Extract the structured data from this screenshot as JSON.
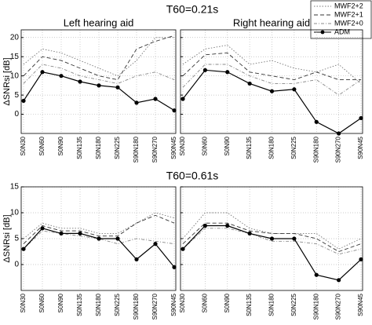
{
  "row_titles": [
    "T60=0.21s",
    "T60=0.61s"
  ],
  "chart_data": [
    {
      "type": "line",
      "title": "Left hearing aid",
      "ylabel": "ΔSNRsi [dB]",
      "show_ytick_labels": true,
      "categories": [
        "S0N30",
        "S0N60",
        "S0N90",
        "S0N135",
        "S0N180",
        "S0N225",
        "S90N180",
        "S90N270",
        "S90N45"
      ],
      "ylim": [
        -5,
        22
      ],
      "yticks": [
        0,
        5,
        10,
        15,
        20
      ],
      "grid": true,
      "legend": "upper right",
      "series": [
        {
          "name": "MWF2+2",
          "color": "#777777",
          "style": "dotted",
          "values": [
            13,
            17,
            16,
            14,
            12,
            10,
            14,
            20,
            20
          ]
        },
        {
          "name": "MWF2+1",
          "color": "#333333",
          "style": "dashed",
          "values": [
            10,
            15,
            14,
            12,
            10,
            9,
            17,
            19,
            20.5
          ]
        },
        {
          "name": "MWF2+0",
          "color": "#888888",
          "style": "dashdot",
          "values": [
            8,
            13,
            12,
            10,
            9,
            8,
            10,
            11,
            9
          ]
        },
        {
          "name": "ADM",
          "color": "#000000",
          "style": "solid",
          "marker": "circle",
          "values": [
            3.5,
            11,
            10,
            8.5,
            7.5,
            7,
            3,
            4,
            1
          ]
        }
      ]
    },
    {
      "type": "line",
      "title": "Right hearing aid",
      "show_ytick_labels": false,
      "categories": [
        "S0N30",
        "S0N60",
        "S0N90",
        "S0N135",
        "S0N180",
        "S0N225",
        "S90N180",
        "S90N270",
        "S90N45"
      ],
      "ylim": [
        -5,
        22
      ],
      "yticks": [
        0,
        5,
        10,
        15,
        20
      ],
      "grid": true,
      "series": [
        {
          "name": "MWF2+2",
          "color": "#777777",
          "style": "dotted",
          "values": [
            13,
            17,
            18,
            13,
            14,
            12,
            11,
            13,
            8
          ]
        },
        {
          "name": "MWF2+1",
          "color": "#333333",
          "style": "dashed",
          "values": [
            10,
            15.5,
            16,
            11,
            10,
            9,
            11,
            9,
            9
          ]
        },
        {
          "name": "MWF2+0",
          "color": "#888888",
          "style": "dashdot",
          "values": [
            7,
            13,
            13,
            10,
            8,
            8,
            9,
            5,
            9
          ]
        },
        {
          "name": "ADM",
          "color": "#000000",
          "style": "solid",
          "marker": "circle",
          "values": [
            4,
            11.5,
            11,
            8,
            6,
            6.5,
            -2,
            -5,
            -1
          ]
        }
      ]
    },
    {
      "type": "line",
      "ylabel": "ΔSNRsi [dB]",
      "show_ytick_labels": true,
      "categories": [
        "S0N30",
        "S0N60",
        "S0N90",
        "S0N135",
        "S0N180",
        "S0N225",
        "S90N180",
        "S90N270",
        "S90N45"
      ],
      "ylim": [
        -5,
        15
      ],
      "yticks": [
        0,
        5,
        10,
        15
      ],
      "grid": true,
      "series": [
        {
          "name": "MWF2+2",
          "color": "#777777",
          "style": "dotted",
          "values": [
            5,
            8,
            7,
            7,
            6,
            6,
            8,
            10,
            9
          ]
        },
        {
          "name": "MWF2+1",
          "color": "#333333",
          "style": "dashed",
          "values": [
            4,
            7.5,
            6.5,
            6.5,
            5.5,
            5.5,
            8,
            9.5,
            8
          ]
        },
        {
          "name": "MWF2+0",
          "color": "#888888",
          "style": "dashdot",
          "values": [
            3,
            6.5,
            6,
            5.5,
            5,
            4,
            5,
            4.5,
            4
          ]
        },
        {
          "name": "ADM",
          "color": "#000000",
          "style": "solid",
          "marker": "circle",
          "values": [
            3,
            7,
            6,
            6,
            5,
            5,
            1,
            4,
            -0.5
          ]
        }
      ]
    },
    {
      "type": "line",
      "show_ytick_labels": false,
      "categories": [
        "S0N30",
        "S0N60",
        "S0N90",
        "S0N135",
        "S0N180",
        "S0N225",
        "S90N180",
        "S90N270",
        "S90N45"
      ],
      "ylim": [
        -5,
        15
      ],
      "yticks": [
        0,
        5,
        10,
        15
      ],
      "grid": true,
      "series": [
        {
          "name": "MWF2+2",
          "color": "#777777",
          "style": "dotted",
          "values": [
            5,
            10,
            10,
            7,
            6,
            6,
            6,
            3,
            5
          ]
        },
        {
          "name": "MWF2+1",
          "color": "#333333",
          "style": "dashed",
          "values": [
            4,
            8,
            8,
            6.5,
            6,
            6,
            5,
            2.5,
            4
          ]
        },
        {
          "name": "MWF2+0",
          "color": "#888888",
          "style": "dashdot",
          "values": [
            3,
            7,
            7,
            6,
            4.5,
            4.5,
            4,
            2,
            3
          ]
        },
        {
          "name": "ADM",
          "color": "#000000",
          "style": "solid",
          "marker": "circle",
          "values": [
            3,
            7.5,
            7.5,
            6,
            5,
            5,
            -2,
            -3,
            1
          ]
        }
      ]
    }
  ]
}
